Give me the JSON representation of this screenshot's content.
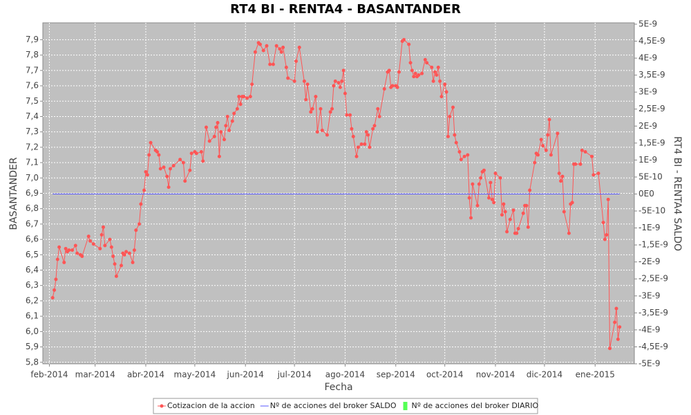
{
  "chart_data": {
    "type": "line",
    "title": "RT4 BI - RENTA4 - BASANTANDER",
    "x_label": "Fecha",
    "y_label": "BASANTANDER",
    "y2_label": "RT4 BI - RENTA4 SALDO",
    "grid": true,
    "legend": "bottom",
    "xlim": [
      -4,
      358
    ],
    "xticks": [
      {
        "value": 0,
        "label": "feb-2014"
      },
      {
        "value": 28,
        "label": "mar-2014"
      },
      {
        "value": 59,
        "label": "abr-2014"
      },
      {
        "value": 89,
        "label": "may-2014"
      },
      {
        "value": 120,
        "label": "jun-2014"
      },
      {
        "value": 150,
        "label": "jul-2014"
      },
      {
        "value": 181,
        "label": "ago-2014"
      },
      {
        "value": 212,
        "label": "sep-2014"
      },
      {
        "value": 242,
        "label": "oct-2014"
      },
      {
        "value": 273,
        "label": "nov-2014"
      },
      {
        "value": 303,
        "label": "dic-2014"
      },
      {
        "value": 334,
        "label": "ene-2015"
      }
    ],
    "ylim": [
      5.79,
      8.01
    ],
    "yticks": [
      {
        "value": 5.8,
        "label": "5,8"
      },
      {
        "value": 5.9,
        "label": "5,9"
      },
      {
        "value": 6.0,
        "label": "6,0"
      },
      {
        "value": 6.1,
        "label": "6,1"
      },
      {
        "value": 6.2,
        "label": "6,2"
      },
      {
        "value": 6.3,
        "label": "6,3"
      },
      {
        "value": 6.4,
        "label": "6,4"
      },
      {
        "value": 6.5,
        "label": "6,5"
      },
      {
        "value": 6.6,
        "label": "6,6"
      },
      {
        "value": 6.7,
        "label": "6,7"
      },
      {
        "value": 6.8,
        "label": "6,8"
      },
      {
        "value": 6.9,
        "label": "6,9"
      },
      {
        "value": 7.0,
        "label": "7,0"
      },
      {
        "value": 7.1,
        "label": "7,1"
      },
      {
        "value": 7.2,
        "label": "7,2"
      },
      {
        "value": 7.3,
        "label": "7,3"
      },
      {
        "value": 7.4,
        "label": "7,4"
      },
      {
        "value": 7.5,
        "label": "7,5"
      },
      {
        "value": 7.6,
        "label": "7,6"
      },
      {
        "value": 7.7,
        "label": "7,7"
      },
      {
        "value": 7.8,
        "label": "7,8"
      },
      {
        "value": 7.9,
        "label": "7,9"
      }
    ],
    "y2lim": [
      -5e-09,
      5.04e-09
    ],
    "y2ticks": [
      {
        "value": 5e-09,
        "label": "5E-9"
      },
      {
        "value": 4.5e-09,
        "label": "4,5E-9"
      },
      {
        "value": 4e-09,
        "label": "4E-9"
      },
      {
        "value": 3.5e-09,
        "label": "3,5E-9"
      },
      {
        "value": 3e-09,
        "label": "3E-9"
      },
      {
        "value": 2.5e-09,
        "label": "2,5E-9"
      },
      {
        "value": 2e-09,
        "label": "2E-9"
      },
      {
        "value": 1.5e-09,
        "label": "1,5E-9"
      },
      {
        "value": 1e-09,
        "label": "1E-9"
      },
      {
        "value": 5e-10,
        "label": "5E-10"
      },
      {
        "value": 0,
        "label": "0E0"
      },
      {
        "value": -5e-10,
        "label": "-5E-10"
      },
      {
        "value": -1e-09,
        "label": "-1E-9"
      },
      {
        "value": -1.5e-09,
        "label": "-1,5E-9"
      },
      {
        "value": -2e-09,
        "label": "-2E-9"
      },
      {
        "value": -2.5e-09,
        "label": "-2,5E-9"
      },
      {
        "value": -3e-09,
        "label": "-3E-9"
      },
      {
        "value": -3.5e-09,
        "label": "-3,5E-9"
      },
      {
        "value": -4e-09,
        "label": "-4E-9"
      },
      {
        "value": -4.5e-09,
        "label": "-4,5E-9"
      },
      {
        "value": -5e-09,
        "label": "-5E-9"
      }
    ],
    "series": [
      {
        "name": "Cotizacion de la accion",
        "color": "#ff5555",
        "markers": true,
        "x": [
          2,
          3,
          4,
          5,
          6,
          9,
          10,
          11,
          12,
          14,
          16,
          17,
          19,
          20,
          24,
          25,
          27,
          31,
          32,
          33,
          34,
          37,
          38,
          39,
          40,
          41,
          44,
          45,
          46,
          47,
          49,
          51,
          52,
          53,
          55,
          56,
          58,
          59,
          60,
          61,
          62,
          65,
          66,
          67,
          68,
          70,
          72,
          73,
          74,
          76,
          80,
          82,
          83,
          86,
          87,
          89,
          90,
          93,
          94,
          96,
          98,
          101,
          102,
          103,
          104,
          105,
          107,
          108,
          109,
          110,
          112,
          113,
          115,
          116,
          117,
          118,
          119,
          121,
          123,
          124,
          126,
          128,
          129,
          131,
          133,
          135,
          137,
          139,
          141,
          142,
          143,
          145,
          146,
          150,
          151,
          153,
          156,
          157,
          158,
          160,
          161,
          163,
          164,
          166,
          167,
          170,
          172,
          173,
          174,
          175,
          177,
          178,
          179,
          180,
          181,
          182,
          184,
          185,
          186,
          188,
          189,
          191,
          193,
          194,
          195,
          196,
          198,
          199,
          201,
          202,
          205,
          207,
          208,
          209,
          210,
          212,
          213,
          214,
          216,
          217,
          220,
          221,
          222,
          223,
          224,
          225,
          226,
          228,
          230,
          231,
          234,
          235,
          236,
          237,
          238,
          239,
          240,
          242,
          243,
          244,
          245,
          247,
          248,
          249,
          251,
          252,
          254,
          256,
          257,
          258,
          259,
          262,
          263,
          264,
          265,
          266,
          269,
          270,
          271,
          272,
          273,
          276,
          277,
          278,
          279,
          280,
          282,
          284,
          285,
          286,
          287,
          290,
          291,
          292,
          293,
          294,
          297,
          298,
          299,
          301,
          302,
          304,
          305,
          306,
          307,
          311,
          312,
          313,
          314,
          315,
          318,
          319,
          320,
          321,
          322,
          325,
          326,
          328,
          332,
          333,
          336,
          339,
          340,
          341,
          342,
          343,
          346,
          347,
          348,
          349
        ],
        "values": [
          6.22,
          6.27,
          6.34,
          6.47,
          6.55,
          6.45,
          6.54,
          6.52,
          6.53,
          6.53,
          6.56,
          6.51,
          6.5,
          6.49,
          6.62,
          6.59,
          6.57,
          6.54,
          6.63,
          6.68,
          6.56,
          6.6,
          6.55,
          6.49,
          6.44,
          6.36,
          6.43,
          6.51,
          6.5,
          6.52,
          6.51,
          6.45,
          6.53,
          6.66,
          6.7,
          6.83,
          6.92,
          7.04,
          7.02,
          7.15,
          7.23,
          7.18,
          7.17,
          7.15,
          7.06,
          7.07,
          7.01,
          6.94,
          7.06,
          7.08,
          7.12,
          7.1,
          6.98,
          7.05,
          7.16,
          7.17,
          7.16,
          7.17,
          7.11,
          7.33,
          7.24,
          7.27,
          7.33,
          7.36,
          7.14,
          7.3,
          7.25,
          7.34,
          7.4,
          7.31,
          7.37,
          7.42,
          7.45,
          7.53,
          7.48,
          7.53,
          7.53,
          7.52,
          7.53,
          7.61,
          7.82,
          7.88,
          7.87,
          7.83,
          7.86,
          7.74,
          7.74,
          7.86,
          7.84,
          7.82,
          7.85,
          7.72,
          7.65,
          7.63,
          7.76,
          7.85,
          7.63,
          7.51,
          7.61,
          7.43,
          7.45,
          7.53,
          7.3,
          7.45,
          7.31,
          7.28,
          7.43,
          7.45,
          7.6,
          7.63,
          7.62,
          7.59,
          7.63,
          7.7,
          7.55,
          7.41,
          7.41,
          7.32,
          7.27,
          7.14,
          7.2,
          7.22,
          7.22,
          7.3,
          7.28,
          7.2,
          7.32,
          7.34,
          7.45,
          7.4,
          7.58,
          7.69,
          7.7,
          7.59,
          7.6,
          7.6,
          7.59,
          7.69,
          7.89,
          7.9,
          7.87,
          7.75,
          7.7,
          7.66,
          7.68,
          7.66,
          7.67,
          7.68,
          7.77,
          7.75,
          7.72,
          7.63,
          7.69,
          7.67,
          7.72,
          7.63,
          7.53,
          7.61,
          7.56,
          7.27,
          7.4,
          7.46,
          7.28,
          7.23,
          7.17,
          7.12,
          7.14,
          7.15,
          6.87,
          6.74,
          6.96,
          6.82,
          6.96,
          7.0,
          7.04,
          7.05,
          6.87,
          6.97,
          6.86,
          6.84,
          7.03,
          7.0,
          6.76,
          6.83,
          6.78,
          6.65,
          6.73,
          6.79,
          6.64,
          6.64,
          6.67,
          6.77,
          6.82,
          6.82,
          6.68,
          6.92,
          7.1,
          7.16,
          7.15,
          7.25,
          7.21,
          7.18,
          7.28,
          7.38,
          7.15,
          7.29,
          7.03,
          6.98,
          7.01,
          6.78,
          6.64,
          6.83,
          6.84,
          7.09,
          7.09,
          7.09,
          7.18,
          7.17,
          7.14,
          7.02,
          7.03,
          6.71,
          6.6,
          6.63,
          6.86,
          5.89,
          6.06,
          6.15,
          5.95,
          6.03
        ]
      },
      {
        "name": "Nº de acciones del broker SALDO",
        "color": "#5555ff",
        "axis": "y2",
        "markers": false,
        "x": [
          2,
          349
        ],
        "values": [
          0,
          0
        ]
      },
      {
        "name": "Nº de acciones del broker DIARIO",
        "color": "#55ff55",
        "axis": "y2",
        "markers": false,
        "x": [],
        "values": []
      }
    ]
  }
}
